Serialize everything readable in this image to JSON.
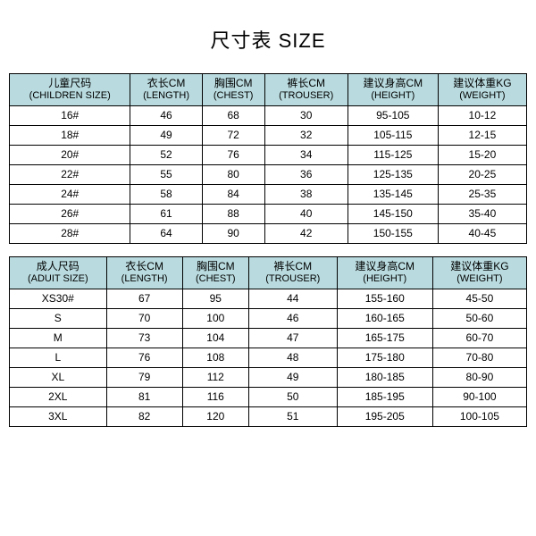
{
  "title": "尺寸表 SIZE",
  "tables": [
    {
      "header_bg": "#b9dbdf",
      "columns": [
        {
          "zh": "儿童尺码",
          "en": "(CHILDREN SIZE)"
        },
        {
          "zh": "衣长CM",
          "en": "(LENGTH)"
        },
        {
          "zh": "胸围CM",
          "en": "(CHEST)"
        },
        {
          "zh": "裤长CM",
          "en": "(TROUSER)"
        },
        {
          "zh": "建议身高CM",
          "en": "(HEIGHT)"
        },
        {
          "zh": "建议体重KG",
          "en": "(WEIGHT)"
        }
      ],
      "rows": [
        [
          "16#",
          "46",
          "68",
          "30",
          "95-105",
          "10-12"
        ],
        [
          "18#",
          "49",
          "72",
          "32",
          "105-115",
          "12-15"
        ],
        [
          "20#",
          "52",
          "76",
          "34",
          "115-125",
          "15-20"
        ],
        [
          "22#",
          "55",
          "80",
          "36",
          "125-135",
          "20-25"
        ],
        [
          "24#",
          "58",
          "84",
          "38",
          "135-145",
          "25-35"
        ],
        [
          "26#",
          "61",
          "88",
          "40",
          "145-150",
          "35-40"
        ],
        [
          "28#",
          "64",
          "90",
          "42",
          "150-155",
          "40-45"
        ]
      ]
    },
    {
      "header_bg": "#b9dbdf",
      "columns": [
        {
          "zh": "成人尺码",
          "en": "(ADUIT SIZE)"
        },
        {
          "zh": "衣长CM",
          "en": "(LENGTH)"
        },
        {
          "zh": "胸围CM",
          "en": "(CHEST)"
        },
        {
          "zh": "裤长CM",
          "en": "(TROUSER)"
        },
        {
          "zh": "建议身高CM",
          "en": "(HEIGHT)"
        },
        {
          "zh": "建议体重KG",
          "en": "(WEIGHT)"
        }
      ],
      "rows": [
        [
          "XS30#",
          "67",
          "95",
          "44",
          "155-160",
          "45-50"
        ],
        [
          "S",
          "70",
          "100",
          "46",
          "160-165",
          "50-60"
        ],
        [
          "M",
          "73",
          "104",
          "47",
          "165-175",
          "60-70"
        ],
        [
          "L",
          "76",
          "108",
          "48",
          "175-180",
          "70-80"
        ],
        [
          "XL",
          "79",
          "112",
          "49",
          "180-185",
          "80-90"
        ],
        [
          "2XL",
          "81",
          "116",
          "50",
          "185-195",
          "90-100"
        ],
        [
          "3XL",
          "82",
          "120",
          "51",
          "195-205",
          "100-105"
        ]
      ]
    }
  ]
}
